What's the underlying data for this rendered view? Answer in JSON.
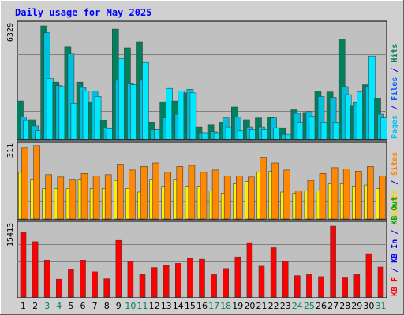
{
  "title": "Daily usage for May 2025",
  "chart_data": {
    "type": "bar",
    "categories": [
      "1",
      "2",
      "3",
      "4",
      "5",
      "6",
      "7",
      "8",
      "9",
      "10",
      "11",
      "12",
      "13",
      "14",
      "15",
      "16",
      "17",
      "18",
      "19",
      "20",
      "21",
      "22",
      "23",
      "24",
      "25",
      "26",
      "27",
      "28",
      "29",
      "30",
      "31"
    ],
    "weekend_days": [
      "3",
      "4",
      "10",
      "11",
      "17",
      "18",
      "24",
      "25",
      "31"
    ],
    "panels": [
      {
        "id": "top",
        "max_label": "6329",
        "ymax": 6329,
        "series_labels": [
          {
            "text": "Pages",
            "color": "#00c0ff"
          },
          {
            "text": " / ",
            "color": "#0000ff"
          },
          {
            "text": "Files",
            "color": "#0060ff"
          },
          {
            "text": " / ",
            "color": "#0000ff"
          },
          {
            "text": "Hits",
            "color": "#008060"
          }
        ],
        "series": [
          {
            "name": "Hits",
            "color": "#00805c",
            "values": [
              2150,
              1100,
              6329,
              3200,
              5150,
              3200,
              2100,
              1050,
              6150,
              5100,
              5450,
              950,
              2100,
              2150,
              2600,
              700,
              800,
              950,
              1800,
              1100,
              1200,
              1250,
              650,
              1650,
              1500,
              2700,
              2650,
              5600,
              1900,
              3050,
              2300
            ]
          },
          {
            "name": "Files",
            "color": "#00c0e0",
            "values": [
              1250,
              750,
              5950,
              3000,
              4800,
              2900,
              2700,
              650,
              3300,
              3100,
              3300,
              550,
              1200,
              1400,
              2800,
              350,
              450,
              1200,
              1250,
              700,
              700,
              1200,
              300,
              1450,
              1550,
              2400,
              2350,
              2950,
              2050,
              2950,
              1400
            ]
          },
          {
            "name": "Pages",
            "color": "#00e8ff",
            "values": [
              1050,
              500,
              3400,
              2950,
              2000,
              2700,
              2400,
              600,
              4500,
              3050,
              4300,
              550,
              2850,
              2700,
              2600,
              350,
              350,
              700,
              500,
              550,
              550,
              650,
              300,
              950,
              1300,
              950,
              950,
              2500,
              2650,
              4650,
              1200
            ]
          }
        ]
      },
      {
        "id": "middle",
        "max_label": "311",
        "ymax": 311,
        "series_labels": [
          {
            "text": "Visits",
            "color": "#ffd000"
          },
          {
            "text": " / ",
            "color": "#0000ff"
          },
          {
            "text": "Sites",
            "color": "#ff8000"
          }
        ],
        "series": [
          {
            "name": "Visits",
            "color": "#ffee00",
            "values": [
              200,
              170,
              130,
              130,
              130,
              170,
              130,
              130,
              165,
              130,
              115,
              170,
              140,
              170,
              140,
              140,
              120,
              110,
              150,
              160,
              200,
              205,
              115,
              110,
              120,
              120,
              150,
              150,
              140,
              145,
              130
            ]
          },
          {
            "name": "Sites",
            "color": "#ff8800",
            "values": [
              305,
              315,
              190,
              180,
              170,
              195,
              185,
              190,
              235,
              210,
              225,
              240,
              200,
              225,
              230,
              200,
              210,
              185,
              185,
              180,
              265,
              240,
              210,
              120,
              165,
              195,
              220,
              215,
              205,
              225,
              185
            ]
          }
        ]
      },
      {
        "id": "bottom",
        "max_label": "15413",
        "ymax": 15413,
        "series_labels": [
          {
            "text": "KB F",
            "color": "#ff0000"
          },
          {
            "text": " / ",
            "color": "#0000ff"
          },
          {
            "text": "KB In",
            "color": "#0000ff"
          },
          {
            "text": " / ",
            "color": "#0000ff"
          },
          {
            "text": "KB Out",
            "color": "#00a000"
          }
        ],
        "series": [
          {
            "name": "KB F",
            "color": "#ff0000",
            "values": [
              14000,
              12000,
              8000,
              3900,
              6000,
              8000,
              5500,
              4000,
              12300,
              7700,
              4900,
              6400,
              6800,
              7300,
              8400,
              8200,
              4900,
              6200,
              8700,
              11800,
              6700,
              10700,
              7700,
              4700,
              4900,
              4300,
              15413,
              4200,
              4900,
              9400,
              6500
            ]
          }
        ]
      }
    ]
  }
}
